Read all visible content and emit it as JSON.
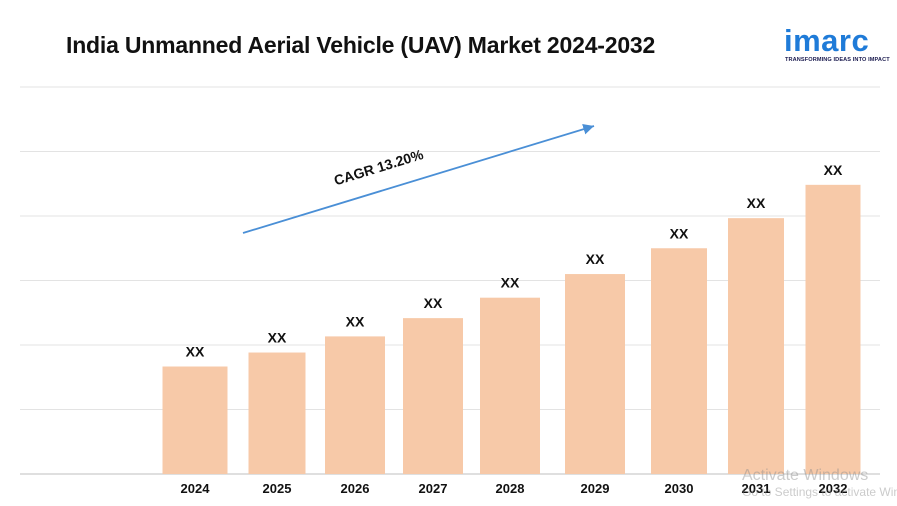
{
  "header": {
    "title": "India Unmanned Aerial Vehicle (UAV) Market 2024-2032"
  },
  "logo": {
    "wordmark": "imarc",
    "tagline": "TRANSFORMING IDEAS INTO IMPACT",
    "color": "#1f7bd8"
  },
  "chart_data": {
    "type": "bar",
    "categories": [
      "2024",
      "2025",
      "2026",
      "2027",
      "2028",
      "2029",
      "2030",
      "2031",
      "2032"
    ],
    "values": [
      1.0,
      1.13,
      1.28,
      1.45,
      1.64,
      1.86,
      2.1,
      2.38,
      2.69
    ],
    "data_labels": [
      "XX",
      "XX",
      "XX",
      "XX",
      "XX",
      "XX",
      "XX",
      "XX",
      "XX"
    ],
    "annotation": "CAGR 13.20%",
    "xlabel": "",
    "ylabel": "",
    "ylim": [
      0,
      3.6
    ],
    "grid": true,
    "legend": "none",
    "bar_color": "#f7c9a8",
    "arrow_color": "#4a8fd6"
  },
  "watermark": {
    "line1": "Activate Windows",
    "line2": "Go to Settings to activate Windows."
  }
}
